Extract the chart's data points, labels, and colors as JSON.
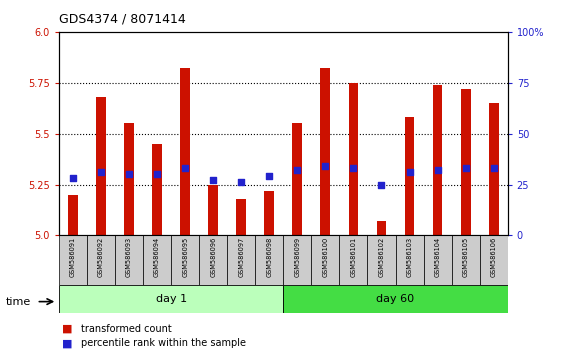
{
  "title": "GDS4374 / 8071414",
  "samples": [
    "GSM586091",
    "GSM586092",
    "GSM586093",
    "GSM586094",
    "GSM586095",
    "GSM586096",
    "GSM586097",
    "GSM586098",
    "GSM586099",
    "GSM586100",
    "GSM586101",
    "GSM586102",
    "GSM586103",
    "GSM586104",
    "GSM586105",
    "GSM586106"
  ],
  "transformed_count": [
    5.2,
    5.68,
    5.55,
    5.45,
    5.82,
    5.25,
    5.18,
    5.22,
    5.55,
    5.82,
    5.75,
    5.07,
    5.58,
    5.74,
    5.72,
    5.65
  ],
  "percentile_rank": [
    28,
    31,
    30,
    30,
    33,
    27,
    26,
    29,
    32,
    34,
    33,
    25,
    31,
    32,
    33,
    33
  ],
  "ylim_left": [
    5.0,
    6.0
  ],
  "ylim_right": [
    0,
    100
  ],
  "day1_count": 8,
  "day60_count": 8,
  "day1_label": "day 1",
  "day60_label": "day 60",
  "time_label": "time",
  "legend_red": "transformed count",
  "legend_blue": "percentile rank within the sample",
  "bar_color": "#cc1100",
  "dot_color": "#2222cc",
  "background_color": "#ffffff",
  "day1_bg": "#bbffbb",
  "day60_bg": "#44dd44",
  "sample_bg": "#cccccc",
  "left_tick_color": "#cc1100",
  "right_tick_color": "#2222cc",
  "yticks_left": [
    5.0,
    5.25,
    5.5,
    5.75,
    6.0
  ],
  "yticks_right": [
    0,
    25,
    50,
    75,
    100
  ]
}
